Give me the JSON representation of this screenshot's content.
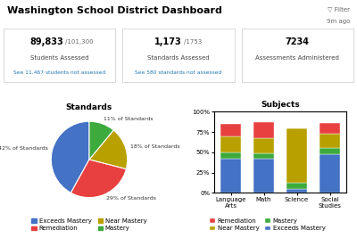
{
  "title": "Washington School District Dashboard",
  "annotations": [
    "▽ Filter",
    "9m ago"
  ],
  "chart_data": [
    {
      "type": "kpi",
      "title": "Students Assessed",
      "annotations": [
        "89,833",
        "/101,300",
        "See 11,467 students not assessed"
      ]
    },
    {
      "type": "kpi",
      "title": "Standards Assessed",
      "annotations": [
        "1,173",
        "/1753",
        "See 580 standards not assessed"
      ]
    },
    {
      "type": "kpi",
      "title": "Assessments Administered",
      "annotations": [
        "7234"
      ]
    },
    {
      "type": "pie",
      "title": "Standards",
      "categories": [
        "Exceeds Mastery",
        "Remediation",
        "Near Mastery",
        "Mastery"
      ],
      "values": [
        42,
        29,
        18,
        11
      ],
      "value_labels": [
        "42% of Standards",
        "29% of Standards",
        "18% of Standards",
        "11% of Standards"
      ],
      "data_labels": true,
      "colors": [
        "#4472C4",
        "#E84040",
        "#B8A000",
        "#3DAA3D"
      ],
      "legend": "lower center"
    },
    {
      "type": "bar",
      "title": "Subjects",
      "stacked": true,
      "categories": [
        "Language Arts",
        "Math",
        "Science",
        "Social Studies"
      ],
      "series": [
        {
          "name": "Exceeds Mastery",
          "color": "#4472C4",
          "values": [
            42,
            42,
            5,
            48
          ]
        },
        {
          "name": "Mastery",
          "color": "#3DAA3D",
          "values": [
            8,
            7,
            7,
            7
          ]
        },
        {
          "name": "Near Mastery",
          "color": "#B8A000",
          "values": [
            20,
            18,
            68,
            18
          ]
        },
        {
          "name": "Remediation",
          "color": "#E84040",
          "values": [
            15,
            20,
            0,
            13
          ]
        }
      ],
      "ylim": [
        0,
        100
      ],
      "yticks": [
        {
          "value": 0,
          "label": "0%"
        },
        {
          "value": 25,
          "label": "25%"
        },
        {
          "value": 50,
          "label": "50%"
        },
        {
          "value": 75,
          "label": "75%"
        },
        {
          "value": 100,
          "label": "100%"
        }
      ],
      "legend": "lower center"
    }
  ]
}
